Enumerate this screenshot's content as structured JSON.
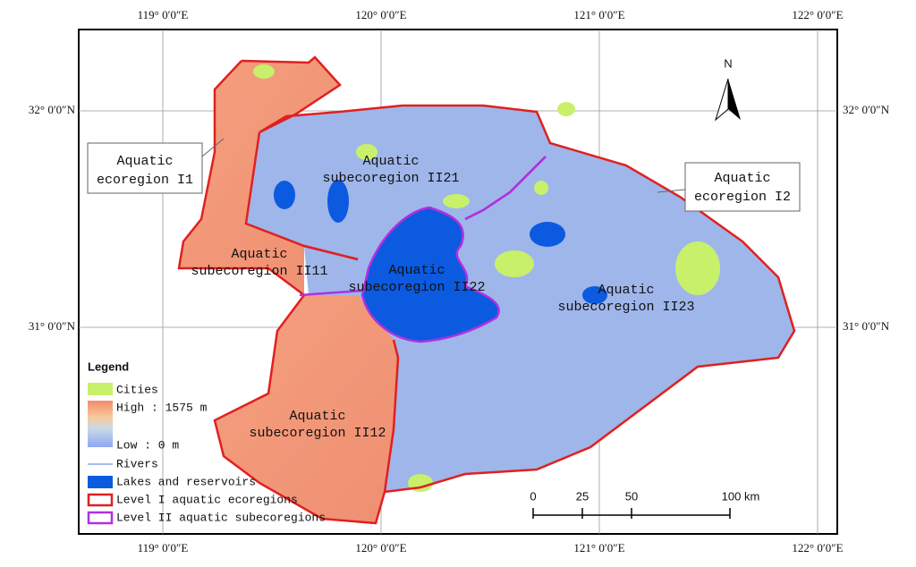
{
  "map": {
    "top_labels": [
      "119° 0′0″E",
      "120° 0′0″E",
      "121° 0′0″E",
      "122° 0′0″E"
    ],
    "bottom_labels": [
      "119° 0′0″E",
      "120° 0′0″E",
      "121° 0′0″E",
      "122° 0′0″E"
    ],
    "left_labels": [
      "32° 0′0″N",
      "31° 0′0″N"
    ],
    "right_labels": [
      "32° 0′0″N",
      "31° 0′0″N"
    ],
    "region_labels": [
      {
        "lines": [
          "Aquatic",
          "subecoregion II21"
        ]
      },
      {
        "lines": [
          "Aquatic",
          "subecoregion II11"
        ]
      },
      {
        "lines": [
          "Aquatic",
          "subecoregion II22"
        ]
      },
      {
        "lines": [
          "Aquatic",
          "subecoregion II23"
        ]
      },
      {
        "lines": [
          "Aquatic",
          "subecoregion II12"
        ]
      }
    ],
    "callouts": [
      {
        "lines": [
          "Aquatic",
          "ecoregion I1"
        ]
      },
      {
        "lines": [
          "Aquatic",
          "ecoregion I2"
        ]
      }
    ],
    "north": "N",
    "scale_bar": [
      "0",
      "25",
      "50",
      "100 km"
    ],
    "legend": {
      "title": "Legend",
      "items": [
        "Cities",
        "High : 1575 m",
        "Low : 0 m",
        "Rivers",
        "Lakes and reservoirs",
        "Level I aquatic ecoregions",
        "Level II aquatic subecoregions"
      ]
    }
  }
}
